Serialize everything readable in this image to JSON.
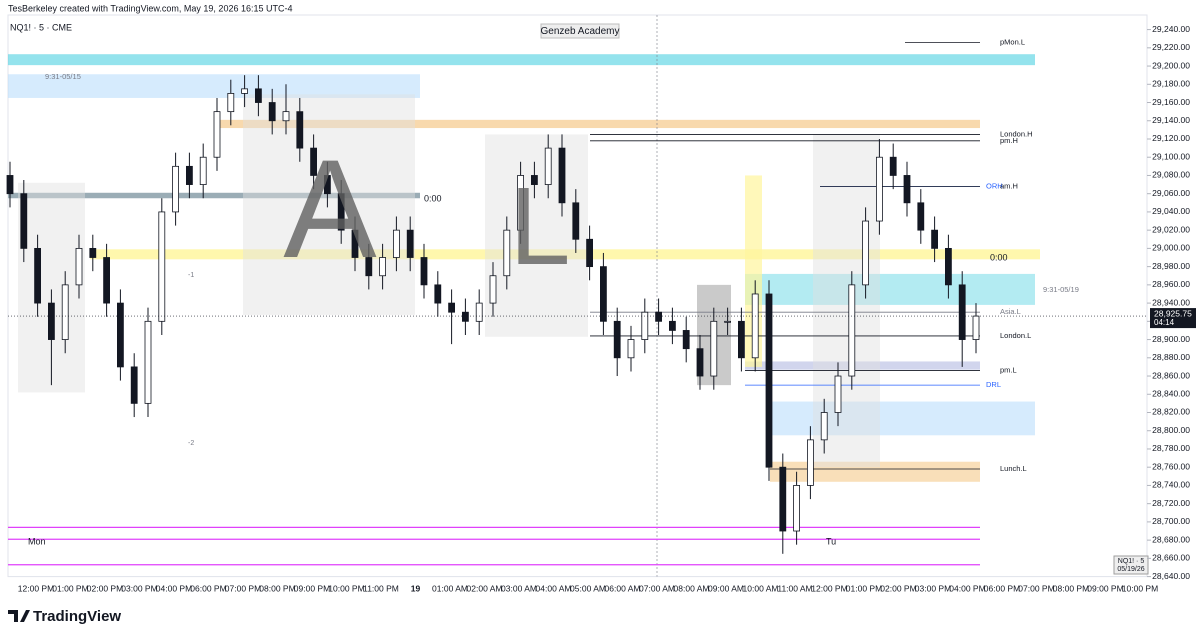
{
  "header": {
    "credit": "TesBerkeley created with TradingView.com, May 19, 2026 16:15 UTC-4",
    "symbol": "NQ1! · 5 · CME",
    "watermark": "Genzeb Academy",
    "footer": "TradingView"
  },
  "annotations": {
    "big_a": "A",
    "big_l": "L",
    "mon": "Mon",
    "tu": "Tu",
    "session_left": "9:31-05/15",
    "session_right": "9:31-05/19",
    "zero_left": "0:00",
    "zero_right": "0:00",
    "minus_one": "-1",
    "minus_two": "-2",
    "badge_symbol": "NQ1! · 5",
    "badge_date": "05/19/26",
    "countdown": "04:14"
  },
  "chart_data": {
    "type": "candlestick",
    "categories": [
      "12:00 PM",
      "01:00 PM",
      "02:00 PM",
      "03:00 PM",
      "04:00 PM",
      "06:00 PM",
      "07:00 PM",
      "08:00 PM",
      "09:00 PM",
      "10:00 PM",
      "11:00 PM",
      "19",
      "01:00 AM",
      "02:00 AM",
      "03:00 AM",
      "04:00 AM",
      "05:00 AM",
      "06:00 AM",
      "07:00 AM",
      "08:00 AM",
      "09:00 AM",
      "10:00 AM",
      "11:00 AM",
      "12:00 PM",
      "01:00 PM",
      "02:00 PM",
      "03:00 PM",
      "04:00 PM",
      "06:00 PM",
      "07:00 PM",
      "08:00 PM",
      "09:00 PM",
      "10:00 PM"
    ],
    "open": [
      29080,
      29060,
      29000,
      28940,
      28900,
      28960,
      29000,
      28990,
      28940,
      28870,
      28830,
      28920,
      29040,
      29090,
      29070,
      29100,
      29150,
      29170,
      29175,
      29160,
      29140,
      29150,
      29110,
      29080,
      29060,
      29020,
      28990,
      28970,
      28990,
      29020,
      28990,
      28960,
      28940,
      28930,
      28920,
      28940,
      28970,
      29020,
      29080,
      29070,
      29110,
      29050,
      29010,
      28980,
      28920,
      28880,
      28900,
      28930,
      28920,
      28910,
      28890,
      28860,
      28920,
      28920,
      28880,
      28950,
      28760,
      28690,
      28740,
      28790,
      28820,
      28860,
      28960,
      29030,
      29100,
      29080,
      29050,
      29020,
      29000,
      28960,
      28900
    ],
    "high": [
      29095,
      29075,
      29015,
      28955,
      28975,
      29015,
      29015,
      29005,
      28955,
      28885,
      28935,
      29055,
      29105,
      29105,
      29115,
      29165,
      29185,
      29190,
      29190,
      29175,
      29180,
      29165,
      29125,
      29095,
      29075,
      29035,
      29005,
      29005,
      29035,
      29035,
      29005,
      28975,
      28955,
      28945,
      28955,
      28985,
      29035,
      29095,
      29095,
      29125,
      29125,
      29065,
      29025,
      28995,
      28935,
      28915,
      28945,
      28945,
      28935,
      28925,
      28905,
      28935,
      28935,
      28935,
      28965,
      28965,
      28775,
      28755,
      28805,
      28835,
      28875,
      28975,
      29045,
      29120,
      29115,
      29095,
      29065,
      29035,
      29015,
      28975,
      28940
    ],
    "low": [
      29045,
      28985,
      28925,
      28850,
      28885,
      28945,
      28975,
      28925,
      28855,
      28815,
      28815,
      28905,
      29025,
      29055,
      29055,
      29085,
      29135,
      29155,
      29145,
      29125,
      29125,
      29095,
      29065,
      29045,
      29005,
      28975,
      28955,
      28955,
      28975,
      28975,
      28945,
      28925,
      28895,
      28905,
      28905,
      28925,
      28955,
      29005,
      29055,
      29055,
      29035,
      28995,
      28965,
      28905,
      28860,
      28865,
      28885,
      28905,
      28895,
      28875,
      28845,
      28845,
      28905,
      28865,
      28865,
      28745,
      28665,
      28675,
      28725,
      28775,
      28805,
      28845,
      28945,
      29015,
      29065,
      29035,
      29005,
      28985,
      28945,
      28870,
      28885
    ],
    "close": [
      29060,
      29000,
      28940,
      28900,
      28960,
      29000,
      28990,
      28940,
      28870,
      28830,
      28920,
      29040,
      29090,
      29070,
      29100,
      29150,
      29170,
      29175,
      29160,
      29140,
      29150,
      29110,
      29080,
      29060,
      29020,
      28990,
      28970,
      28990,
      29020,
      28990,
      28960,
      28940,
      28930,
      28920,
      28940,
      28970,
      29020,
      29080,
      29070,
      29110,
      29050,
      29010,
      28980,
      28920,
      28880,
      28900,
      28930,
      28920,
      28910,
      28890,
      28860,
      28920,
      28920,
      28880,
      28950,
      28760,
      28690,
      28740,
      28790,
      28820,
      28860,
      28960,
      29030,
      29100,
      29080,
      29050,
      29020,
      29000,
      28960,
      28900,
      28925.75
    ],
    "last_price": {
      "value": 28925.75,
      "label": "28,925.75"
    },
    "up_color": "#ffffff",
    "down_color": "#131722",
    "wick_color": "#131722",
    "ylim": [
      28640,
      29256
    ],
    "yticks": [
      {
        "value": 28640,
        "label": "28,640.00"
      },
      {
        "value": 28660,
        "label": "28,660.00"
      },
      {
        "value": 28680,
        "label": "28,680.00"
      },
      {
        "value": 28700,
        "label": "28,700.00"
      },
      {
        "value": 28720,
        "label": "28,720.00"
      },
      {
        "value": 28740,
        "label": "28,740.00"
      },
      {
        "value": 28760,
        "label": "28,760.00"
      },
      {
        "value": 28780,
        "label": "28,780.00"
      },
      {
        "value": 28800,
        "label": "28,800.00"
      },
      {
        "value": 28820,
        "label": "28,820.00"
      },
      {
        "value": 28840,
        "label": "28,840.00"
      },
      {
        "value": 28860,
        "label": "28,860.00"
      },
      {
        "value": 28880,
        "label": "28,880.00"
      },
      {
        "value": 28900,
        "label": "28,900.00"
      },
      {
        "value": 28920,
        "label": "28,920.00"
      },
      {
        "value": 28940,
        "label": "28,940.00"
      },
      {
        "value": 28960,
        "label": "28,960.00"
      },
      {
        "value": 28980,
        "label": "28,980.00"
      },
      {
        "value": 29000,
        "label": "29,000.00"
      },
      {
        "value": 29020,
        "label": "29,020.00"
      },
      {
        "value": 29040,
        "label": "29,040.00"
      },
      {
        "value": 29060,
        "label": "29,060.00"
      },
      {
        "value": 29080,
        "label": "29,080.00"
      },
      {
        "value": 29100,
        "label": "29,100.00"
      },
      {
        "value": 29120,
        "label": "29,120.00"
      },
      {
        "value": 29140,
        "label": "29,140.00"
      },
      {
        "value": 29160,
        "label": "29,160.00"
      },
      {
        "value": 29180,
        "label": "29,180.00"
      },
      {
        "value": 29200,
        "label": "29,200.00"
      },
      {
        "value": 29220,
        "label": "29,220.00"
      },
      {
        "value": 29240,
        "label": "29,240.00"
      }
    ],
    "levels": [
      {
        "name": "pMon.L",
        "value": 29226,
        "color": "#131722"
      },
      {
        "name": "London.H",
        "value": 29125,
        "color": "#131722"
      },
      {
        "name": "pm.H",
        "value": 29118,
        "color": "#131722"
      },
      {
        "name": "ORH",
        "value": 29068,
        "color": "#2962ff"
      },
      {
        "name": "am.H",
        "value": 29068,
        "color": "#131722"
      },
      {
        "name": "Asia.L",
        "value": 28930,
        "color": "#787b86"
      },
      {
        "name": "London.L",
        "value": 28904,
        "color": "#131722"
      },
      {
        "name": "pm.L",
        "value": 28866,
        "color": "#131722"
      },
      {
        "name": "DRL",
        "value": 28850,
        "color": "#2962ff"
      },
      {
        "name": "Lunch.L",
        "value": 28758,
        "color": "#131722"
      }
    ],
    "zones": [
      {
        "from": 29201,
        "to": 29213,
        "color": "#4dd0e1"
      },
      {
        "from": 29165,
        "to": 29191,
        "color": "#bbdefb"
      },
      {
        "from": 29132,
        "to": 29141,
        "color": "#f5c98a"
      },
      {
        "from": 29055,
        "to": 29061,
        "color": "#90a4ae"
      },
      {
        "from": 28988,
        "to": 28999,
        "color": "#fff176"
      },
      {
        "from": 28938,
        "to": 28972,
        "color": "#80deea"
      },
      {
        "from": 28867,
        "to": 28876,
        "color": "#c5cae9"
      },
      {
        "from": 28795,
        "to": 28832,
        "color": "#bbdefb"
      },
      {
        "from": 28744,
        "to": 28766,
        "color": "#f5c98a"
      },
      {
        "from": 28927,
        "to": 29169,
        "color": "#e0e0e0"
      },
      {
        "from": 28903,
        "to": 29125,
        "color": "#e0e0e0"
      },
      {
        "from": 28842,
        "to": 29072,
        "color": "#e0e0e0"
      },
      {
        "from": 28760,
        "to": 29125,
        "color": "#e0e0e0"
      },
      {
        "from": 28850,
        "to": 28960,
        "color": "#bdbdbd"
      },
      {
        "from": 28870,
        "to": 29080,
        "color": "#fff59d"
      }
    ],
    "magenta_lines": [
      28694,
      28681,
      28653
    ]
  }
}
